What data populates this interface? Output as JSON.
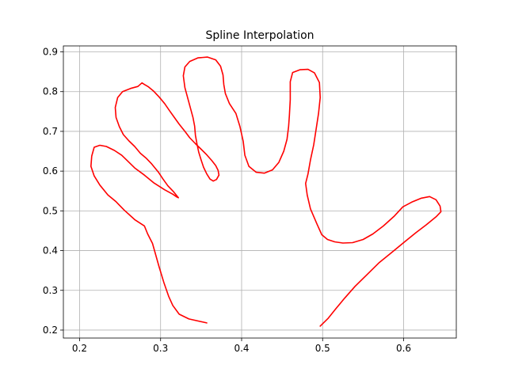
{
  "chart_data": {
    "type": "line",
    "title": "Spline Interpolation",
    "xlabel": "",
    "ylabel": "",
    "xlim": [
      0.18,
      0.665
    ],
    "ylim": [
      0.18,
      0.915
    ],
    "grid": true,
    "x_ticks": [
      0.2,
      0.3,
      0.4,
      0.5,
      0.6
    ],
    "x_tick_labels": [
      "0.2",
      "0.3",
      "0.4",
      "0.5",
      "0.6"
    ],
    "y_ticks": [
      0.2,
      0.3,
      0.4,
      0.5,
      0.6,
      0.7,
      0.8,
      0.9
    ],
    "y_tick_labels": [
      "0.2",
      "0.3",
      "0.4",
      "0.5",
      "0.6",
      "0.7",
      "0.8",
      "0.9"
    ],
    "series": [
      {
        "color": "#ff0000",
        "points": [
          [
            0.357,
            0.218
          ],
          [
            0.335,
            0.228
          ],
          [
            0.323,
            0.24
          ],
          [
            0.315,
            0.262
          ],
          [
            0.31,
            0.285
          ],
          [
            0.304,
            0.32
          ],
          [
            0.298,
            0.36
          ],
          [
            0.29,
            0.418
          ],
          [
            0.284,
            0.442
          ],
          [
            0.28,
            0.462
          ],
          [
            0.268,
            0.478
          ],
          [
            0.255,
            0.502
          ],
          [
            0.245,
            0.523
          ],
          [
            0.235,
            0.54
          ],
          [
            0.225,
            0.565
          ],
          [
            0.218,
            0.588
          ],
          [
            0.214,
            0.612
          ],
          [
            0.215,
            0.638
          ],
          [
            0.218,
            0.66
          ],
          [
            0.225,
            0.665
          ],
          [
            0.233,
            0.662
          ],
          [
            0.243,
            0.652
          ],
          [
            0.252,
            0.64
          ],
          [
            0.258,
            0.628
          ],
          [
            0.268,
            0.608
          ],
          [
            0.28,
            0.59
          ],
          [
            0.292,
            0.57
          ],
          [
            0.305,
            0.553
          ],
          [
            0.315,
            0.542
          ],
          [
            0.32,
            0.535
          ],
          [
            0.322,
            0.533
          ],
          [
            0.316,
            0.548
          ],
          [
            0.309,
            0.563
          ],
          [
            0.303,
            0.58
          ],
          [
            0.297,
            0.598
          ],
          [
            0.289,
            0.618
          ],
          [
            0.282,
            0.633
          ],
          [
            0.275,
            0.645
          ],
          [
            0.268,
            0.662
          ],
          [
            0.261,
            0.676
          ],
          [
            0.254,
            0.692
          ],
          [
            0.249,
            0.712
          ],
          [
            0.245,
            0.735
          ],
          [
            0.244,
            0.76
          ],
          [
            0.247,
            0.785
          ],
          [
            0.253,
            0.8
          ],
          [
            0.263,
            0.808
          ],
          [
            0.272,
            0.813
          ],
          [
            0.277,
            0.822
          ],
          [
            0.28,
            0.818
          ],
          [
            0.285,
            0.812
          ],
          [
            0.291,
            0.802
          ],
          [
            0.298,
            0.787
          ],
          [
            0.305,
            0.77
          ],
          [
            0.311,
            0.752
          ],
          [
            0.317,
            0.735
          ],
          [
            0.323,
            0.718
          ],
          [
            0.33,
            0.7
          ],
          [
            0.336,
            0.684
          ],
          [
            0.343,
            0.669
          ],
          [
            0.35,
            0.655
          ],
          [
            0.357,
            0.641
          ],
          [
            0.363,
            0.627
          ],
          [
            0.368,
            0.614
          ],
          [
            0.371,
            0.602
          ],
          [
            0.372,
            0.59
          ],
          [
            0.369,
            0.579
          ],
          [
            0.365,
            0.575
          ],
          [
            0.361,
            0.58
          ],
          [
            0.357,
            0.593
          ],
          [
            0.353,
            0.61
          ],
          [
            0.35,
            0.628
          ],
          [
            0.347,
            0.648
          ],
          [
            0.345,
            0.668
          ],
          [
            0.343,
            0.69
          ],
          [
            0.342,
            0.713
          ],
          [
            0.34,
            0.735
          ],
          [
            0.337,
            0.757
          ],
          [
            0.334,
            0.78
          ],
          [
            0.33,
            0.81
          ],
          [
            0.328,
            0.84
          ],
          [
            0.33,
            0.862
          ],
          [
            0.336,
            0.876
          ],
          [
            0.346,
            0.885
          ],
          [
            0.358,
            0.887
          ],
          [
            0.368,
            0.88
          ],
          [
            0.374,
            0.864
          ],
          [
            0.377,
            0.842
          ],
          [
            0.378,
            0.818
          ],
          [
            0.38,
            0.795
          ],
          [
            0.385,
            0.77
          ],
          [
            0.393,
            0.745
          ],
          [
            0.398,
            0.712
          ],
          [
            0.402,
            0.675
          ],
          [
            0.404,
            0.64
          ],
          [
            0.409,
            0.612
          ],
          [
            0.418,
            0.597
          ],
          [
            0.428,
            0.595
          ],
          [
            0.438,
            0.603
          ],
          [
            0.446,
            0.622
          ],
          [
            0.452,
            0.65
          ],
          [
            0.456,
            0.68
          ],
          [
            0.458,
            0.712
          ],
          [
            0.459,
            0.74
          ],
          [
            0.46,
            0.78
          ],
          [
            0.46,
            0.825
          ],
          [
            0.463,
            0.848
          ],
          [
            0.472,
            0.855
          ],
          [
            0.482,
            0.856
          ],
          [
            0.49,
            0.847
          ],
          [
            0.496,
            0.823
          ],
          [
            0.497,
            0.785
          ],
          [
            0.495,
            0.745
          ],
          [
            0.492,
            0.706
          ],
          [
            0.489,
            0.666
          ],
          [
            0.485,
            0.628
          ],
          [
            0.482,
            0.593
          ],
          [
            0.479,
            0.569
          ],
          [
            0.481,
            0.54
          ],
          [
            0.485,
            0.505
          ],
          [
            0.493,
            0.467
          ],
          [
            0.499,
            0.44
          ],
          [
            0.506,
            0.428
          ],
          [
            0.515,
            0.422
          ],
          [
            0.525,
            0.419
          ],
          [
            0.537,
            0.42
          ],
          [
            0.55,
            0.428
          ],
          [
            0.562,
            0.442
          ],
          [
            0.575,
            0.462
          ],
          [
            0.588,
            0.486
          ],
          [
            0.599,
            0.51
          ],
          [
            0.61,
            0.522
          ],
          [
            0.622,
            0.532
          ],
          [
            0.632,
            0.536
          ],
          [
            0.64,
            0.528
          ],
          [
            0.645,
            0.512
          ],
          [
            0.646,
            0.498
          ],
          [
            0.64,
            0.485
          ],
          [
            0.628,
            0.465
          ],
          [
            0.615,
            0.445
          ],
          [
            0.6,
            0.42
          ],
          [
            0.585,
            0.395
          ],
          [
            0.57,
            0.37
          ],
          [
            0.555,
            0.34
          ],
          [
            0.54,
            0.31
          ],
          [
            0.527,
            0.28
          ],
          [
            0.516,
            0.253
          ],
          [
            0.507,
            0.23
          ],
          [
            0.497,
            0.21
          ]
        ]
      }
    ]
  }
}
